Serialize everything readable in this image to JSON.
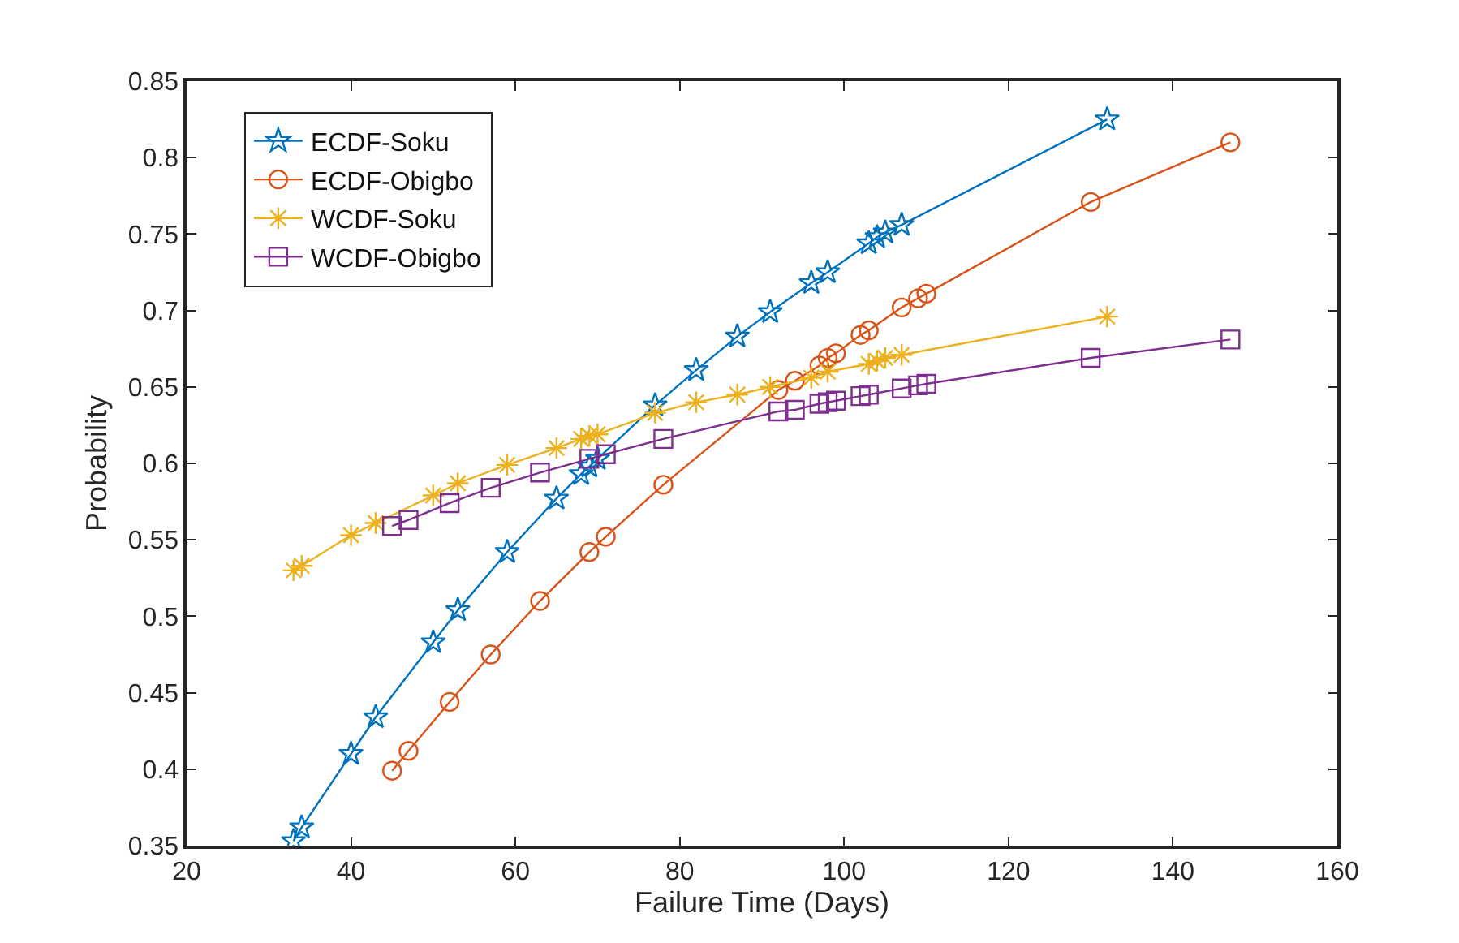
{
  "chart_data": {
    "type": "line",
    "xlabel": "Failure Time (Days)",
    "ylabel": "Probability",
    "xlim": [
      20,
      160
    ],
    "xticks": [
      20,
      40,
      60,
      80,
      100,
      120,
      140,
      160
    ],
    "ylim": [
      0.35,
      0.85
    ],
    "yticks": [
      0.35,
      0.4,
      0.45,
      0.5,
      0.55,
      0.6,
      0.65,
      0.7,
      0.75,
      0.8,
      0.85
    ],
    "legend": "top left",
    "line_style": "solid",
    "series": [
      {
        "name": "ECDF-Soku",
        "color": "#0072bd",
        "marker": "star",
        "x": [
          33,
          34,
          40,
          43,
          50,
          53,
          59,
          65,
          68,
          69,
          70,
          77,
          82,
          87,
          91,
          96,
          98,
          103,
          104,
          105,
          107,
          132
        ],
        "values": [
          0.353,
          0.362,
          0.41,
          0.434,
          0.483,
          0.504,
          0.542,
          0.577,
          0.593,
          0.598,
          0.603,
          0.638,
          0.661,
          0.683,
          0.699,
          0.718,
          0.725,
          0.744,
          0.748,
          0.751,
          0.756,
          0.825
        ]
      },
      {
        "name": "ECDF-Obigbo",
        "color": "#d95319",
        "marker": "circle",
        "x": [
          45,
          47,
          52,
          57,
          63,
          69,
          71,
          78,
          92,
          94,
          97,
          98,
          99,
          102,
          103,
          107,
          109,
          110,
          130,
          147
        ],
        "values": [
          0.399,
          0.412,
          0.444,
          0.475,
          0.51,
          0.542,
          0.552,
          0.586,
          0.648,
          0.654,
          0.664,
          0.669,
          0.672,
          0.684,
          0.687,
          0.702,
          0.708,
          0.711,
          0.771,
          0.81
        ]
      },
      {
        "name": "WCDF-Soku",
        "color": "#edb120",
        "marker": "cross",
        "x": [
          33,
          34,
          40,
          43,
          50,
          53,
          59,
          65,
          68,
          69,
          70,
          77,
          82,
          87,
          91,
          96,
          98,
          103,
          104,
          105,
          107,
          132
        ],
        "values": [
          0.53,
          0.533,
          0.553,
          0.561,
          0.579,
          0.587,
          0.599,
          0.61,
          0.616,
          0.618,
          0.619,
          0.633,
          0.64,
          0.645,
          0.65,
          0.656,
          0.66,
          0.665,
          0.667,
          0.669,
          0.671,
          0.696
        ]
      },
      {
        "name": "WCDF-Obigbo",
        "color": "#7e2f8e",
        "marker": "square",
        "x": [
          45,
          47,
          52,
          57,
          63,
          69,
          71,
          78,
          92,
          94,
          97,
          98,
          99,
          102,
          103,
          107,
          109,
          110,
          130,
          147
        ],
        "values": [
          0.559,
          0.563,
          0.574,
          0.584,
          0.594,
          0.603,
          0.606,
          0.616,
          0.634,
          0.635,
          0.639,
          0.64,
          0.641,
          0.644,
          0.645,
          0.649,
          0.651,
          0.652,
          0.669,
          0.681
        ]
      }
    ]
  }
}
